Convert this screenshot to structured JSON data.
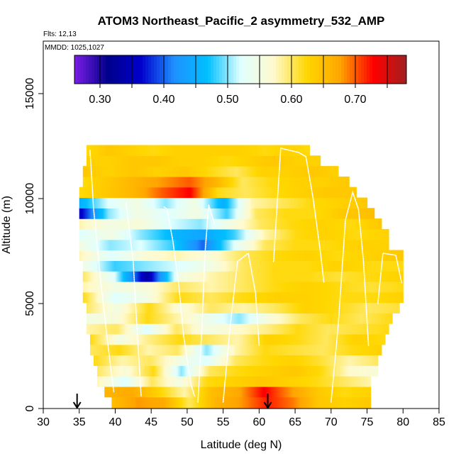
{
  "chart_data": {
    "type": "heatmap",
    "title": "ATOM3 Northeast_Pacific_2 asymmetry_532_AMP",
    "annotations": [
      "Flts: 12,13",
      "MMDD: 1025,1027"
    ],
    "xlabel": "Latitude (deg N)",
    "ylabel": "Altitude (m)",
    "xlim": [
      30,
      85
    ],
    "ylim": [
      0,
      17500
    ],
    "x_ticks": [
      30,
      35,
      40,
      45,
      50,
      55,
      60,
      65,
      70,
      75,
      80,
      85
    ],
    "y_ticks": [
      0,
      5000,
      10000,
      15000
    ],
    "grid": false,
    "colorbar": {
      "placement": "top-inset",
      "range": [
        0.26,
        0.78
      ],
      "colors": [
        "#7a1fe6",
        "#00008b",
        "#0000cd",
        "#1e90ff",
        "#00bfff",
        "#e0ffff",
        "#fffacd",
        "#ffd700",
        "#ffa500",
        "#ff0000",
        "#a02020"
      ],
      "tick_labels": [
        "0.30",
        "0.40",
        "0.50",
        "0.60",
        "0.70"
      ],
      "tick_values": [
        0.3,
        0.4,
        0.5,
        0.6,
        0.7
      ],
      "divider_values": [
        0.3,
        0.35,
        0.4,
        0.45,
        0.5,
        0.55,
        0.6,
        0.65,
        0.7,
        0.75
      ]
    },
    "markers": [
      {
        "symbol": "down-arrow",
        "x": 34.7,
        "y": 0
      },
      {
        "symbol": "down-arrow",
        "x": 61.2,
        "y": 0
      }
    ],
    "bands": [
      {
        "y0": 0,
        "y1": 550,
        "x0": 39.5,
        "x1": 75.5,
        "v": [
          0.65,
          0.68,
          0.67,
          0.6,
          0.66,
          0.68,
          0.72,
          0.69,
          0.64,
          0.63,
          0.64
        ]
      },
      {
        "y0": 550,
        "y1": 1050,
        "x0": 38.5,
        "x1": 75.5,
        "v": [
          0.66,
          0.67,
          0.63,
          0.58,
          0.65,
          0.67,
          0.73,
          0.68,
          0.64,
          0.62,
          0.63
        ]
      },
      {
        "y0": 1050,
        "y1": 1550,
        "x0": 37.5,
        "x1": 75.5,
        "v": [
          0.58,
          0.52,
          0.6,
          0.55,
          0.62,
          0.63,
          0.64,
          0.63,
          0.62,
          0.6,
          0.58
        ]
      },
      {
        "y0": 1550,
        "y1": 2050,
        "x0": 37.5,
        "x1": 76.5,
        "v": [
          0.6,
          0.56,
          0.62,
          0.5,
          0.6,
          0.62,
          0.63,
          0.64,
          0.62,
          0.57,
          0.56
        ]
      },
      {
        "y0": 2050,
        "y1": 2550,
        "x0": 37.0,
        "x1": 76.5,
        "v": [
          0.62,
          0.58,
          0.6,
          0.55,
          0.52,
          0.6,
          0.62,
          0.63,
          0.61,
          0.58,
          0.6
        ]
      },
      {
        "y0": 2550,
        "y1": 3050,
        "x0": 36.5,
        "x1": 77.0,
        "v": [
          0.6,
          0.62,
          0.58,
          0.6,
          0.5,
          0.58,
          0.62,
          0.61,
          0.6,
          0.62,
          0.63
        ]
      },
      {
        "y0": 3050,
        "y1": 3550,
        "x0": 36.5,
        "x1": 77.5,
        "v": [
          0.62,
          0.55,
          0.59,
          0.62,
          0.6,
          0.58,
          0.63,
          0.62,
          0.6,
          0.63,
          0.62
        ]
      },
      {
        "y0": 3550,
        "y1": 4050,
        "x0": 36.0,
        "x1": 78.0,
        "v": [
          0.58,
          0.6,
          0.52,
          0.6,
          0.55,
          0.57,
          0.59,
          0.62,
          0.6,
          0.61,
          0.62
        ]
      },
      {
        "y0": 4050,
        "y1": 4550,
        "x0": 36.0,
        "x1": 78.5,
        "v": [
          0.55,
          0.56,
          0.62,
          0.58,
          0.54,
          0.5,
          0.56,
          0.6,
          0.62,
          0.6,
          0.62
        ]
      },
      {
        "y0": 4550,
        "y1": 5050,
        "x0": 36.0,
        "x1": 79.5,
        "v": [
          0.6,
          0.55,
          0.62,
          0.56,
          0.6,
          0.58,
          0.6,
          0.63,
          0.62,
          0.6,
          0.61
        ]
      },
      {
        "y0": 5050,
        "y1": 5550,
        "x0": 35.5,
        "x1": 80.0,
        "v": [
          0.62,
          0.52,
          0.55,
          0.62,
          0.6,
          0.62,
          0.63,
          0.63,
          0.62,
          0.62,
          0.63
        ]
      },
      {
        "y0": 5550,
        "y1": 6050,
        "x0": 35.5,
        "x1": 80.0,
        "v": [
          0.58,
          0.55,
          0.56,
          0.6,
          0.58,
          0.6,
          0.62,
          0.63,
          0.62,
          0.61,
          0.62
        ]
      },
      {
        "y0": 6050,
        "y1": 6550,
        "x0": 35.5,
        "x1": 80.0,
        "v": [
          0.6,
          0.52,
          0.33,
          0.55,
          0.58,
          0.6,
          0.62,
          0.62,
          0.61,
          0.62,
          0.63
        ]
      },
      {
        "y0": 6550,
        "y1": 7050,
        "x0": 35.5,
        "x1": 80.0,
        "v": [
          0.55,
          0.48,
          0.5,
          0.52,
          0.55,
          0.6,
          0.62,
          0.62,
          0.63,
          0.62,
          0.62
        ]
      },
      {
        "y0": 7050,
        "y1": 7550,
        "x0": 35.0,
        "x1": 80.0,
        "v": [
          0.58,
          0.52,
          0.56,
          0.58,
          0.56,
          0.6,
          0.62,
          0.63,
          0.62,
          0.63,
          0.64
        ]
      },
      {
        "y0": 7550,
        "y1": 8050,
        "x0": 35.0,
        "x1": 78.0,
        "v": [
          0.55,
          0.5,
          0.52,
          0.48,
          0.4,
          0.52,
          0.6,
          0.62,
          0.62,
          0.63,
          0.63
        ]
      },
      {
        "y0": 8050,
        "y1": 8550,
        "x0": 35.0,
        "x1": 78.0,
        "v": [
          0.52,
          0.55,
          0.5,
          0.46,
          0.44,
          0.48,
          0.58,
          0.62,
          0.63,
          0.62,
          0.63
        ]
      },
      {
        "y0": 8550,
        "y1": 9050,
        "x0": 35.0,
        "x1": 77.0,
        "v": [
          0.58,
          0.55,
          0.56,
          0.52,
          0.5,
          0.55,
          0.6,
          0.62,
          0.63,
          0.62,
          0.64
        ]
      },
      {
        "y0": 9050,
        "y1": 9550,
        "x0": 35.0,
        "x1": 76.0,
        "v": [
          0.35,
          0.5,
          0.55,
          0.52,
          0.55,
          0.48,
          0.6,
          0.62,
          0.62,
          0.64,
          0.65
        ]
      },
      {
        "y0": 9550,
        "y1": 10050,
        "x0": 35.0,
        "x1": 75.0,
        "v": [
          0.45,
          0.52,
          0.55,
          0.5,
          0.55,
          0.45,
          0.58,
          0.6,
          0.62,
          0.63,
          0.64
        ]
      },
      {
        "y0": 10050,
        "y1": 10550,
        "x0": 35.0,
        "x1": 73.5,
        "v": [
          0.62,
          0.64,
          0.66,
          0.7,
          0.73,
          0.62,
          0.6,
          0.62,
          0.63,
          0.64,
          0.64
        ]
      },
      {
        "y0": 10550,
        "y1": 11050,
        "x0": 35.5,
        "x1": 72.5,
        "v": [
          0.62,
          0.64,
          0.66,
          0.68,
          0.7,
          0.66,
          0.6,
          0.62,
          0.63,
          0.63,
          0.64
        ]
      },
      {
        "y0": 11050,
        "y1": 11550,
        "x0": 35.5,
        "x1": 71.0,
        "v": [
          0.64,
          0.63,
          0.64,
          0.63,
          0.64,
          0.62,
          0.6,
          0.63,
          0.63,
          0.64,
          0.63
        ]
      },
      {
        "y0": 11550,
        "y1": 12050,
        "x0": 36.0,
        "x1": 68.5,
        "v": [
          0.63,
          0.63,
          0.64,
          0.64,
          0.63,
          0.63,
          0.62,
          0.63,
          0.64,
          0.63,
          0.63
        ]
      },
      {
        "y0": 12050,
        "y1": 12550,
        "x0": 36.0,
        "x1": 67.0,
        "v": [
          0.62,
          0.64,
          0.63,
          0.62,
          0.63,
          0.63,
          0.63,
          0.63,
          0.62,
          0.63,
          0.62
        ]
      }
    ],
    "flight_tracks": [
      [
        [
          36.5,
          12300
        ],
        [
          37.0,
          9500
        ],
        [
          38.0,
          6000
        ],
        [
          39.0,
          3000
        ],
        [
          39.8,
          800
        ]
      ],
      [
        [
          41.5,
          9800
        ],
        [
          42.5,
          7000
        ],
        [
          43.0,
          4000
        ],
        [
          43.6,
          600
        ]
      ],
      [
        [
          46.8,
          9600
        ],
        [
          47.2,
          9500
        ],
        [
          48.0,
          8000
        ],
        [
          48.8,
          6000
        ],
        [
          49.5,
          3500
        ],
        [
          50.5,
          1200
        ],
        [
          51.0,
          600
        ]
      ],
      [
        [
          51.5,
          300
        ],
        [
          52.0,
          3500
        ],
        [
          52.5,
          7500
        ],
        [
          53.0,
          9700
        ],
        [
          53.8,
          8800
        ]
      ],
      [
        [
          55.0,
          300
        ],
        [
          56.0,
          4000
        ],
        [
          57.0,
          7000
        ],
        [
          58.5,
          7400
        ],
        [
          59.5,
          5500
        ],
        [
          60.0,
          3000
        ]
      ],
      [
        [
          62.0,
          7000
        ],
        [
          63.0,
          12400
        ],
        [
          65.5,
          12200
        ],
        [
          66.5,
          12000
        ],
        [
          67.5,
          10000
        ],
        [
          68.5,
          7500
        ],
        [
          69.0,
          6000
        ]
      ],
      [
        [
          70.0,
          300
        ],
        [
          71.0,
          4000
        ],
        [
          72.0,
          9000
        ],
        [
          73.0,
          10300
        ],
        [
          73.8,
          9500
        ],
        [
          74.5,
          7000
        ],
        [
          75.2,
          3000
        ]
      ],
      [
        [
          76.5,
          5000
        ],
        [
          77.2,
          7400
        ],
        [
          79.0,
          7300
        ],
        [
          79.8,
          6000
        ]
      ]
    ]
  }
}
